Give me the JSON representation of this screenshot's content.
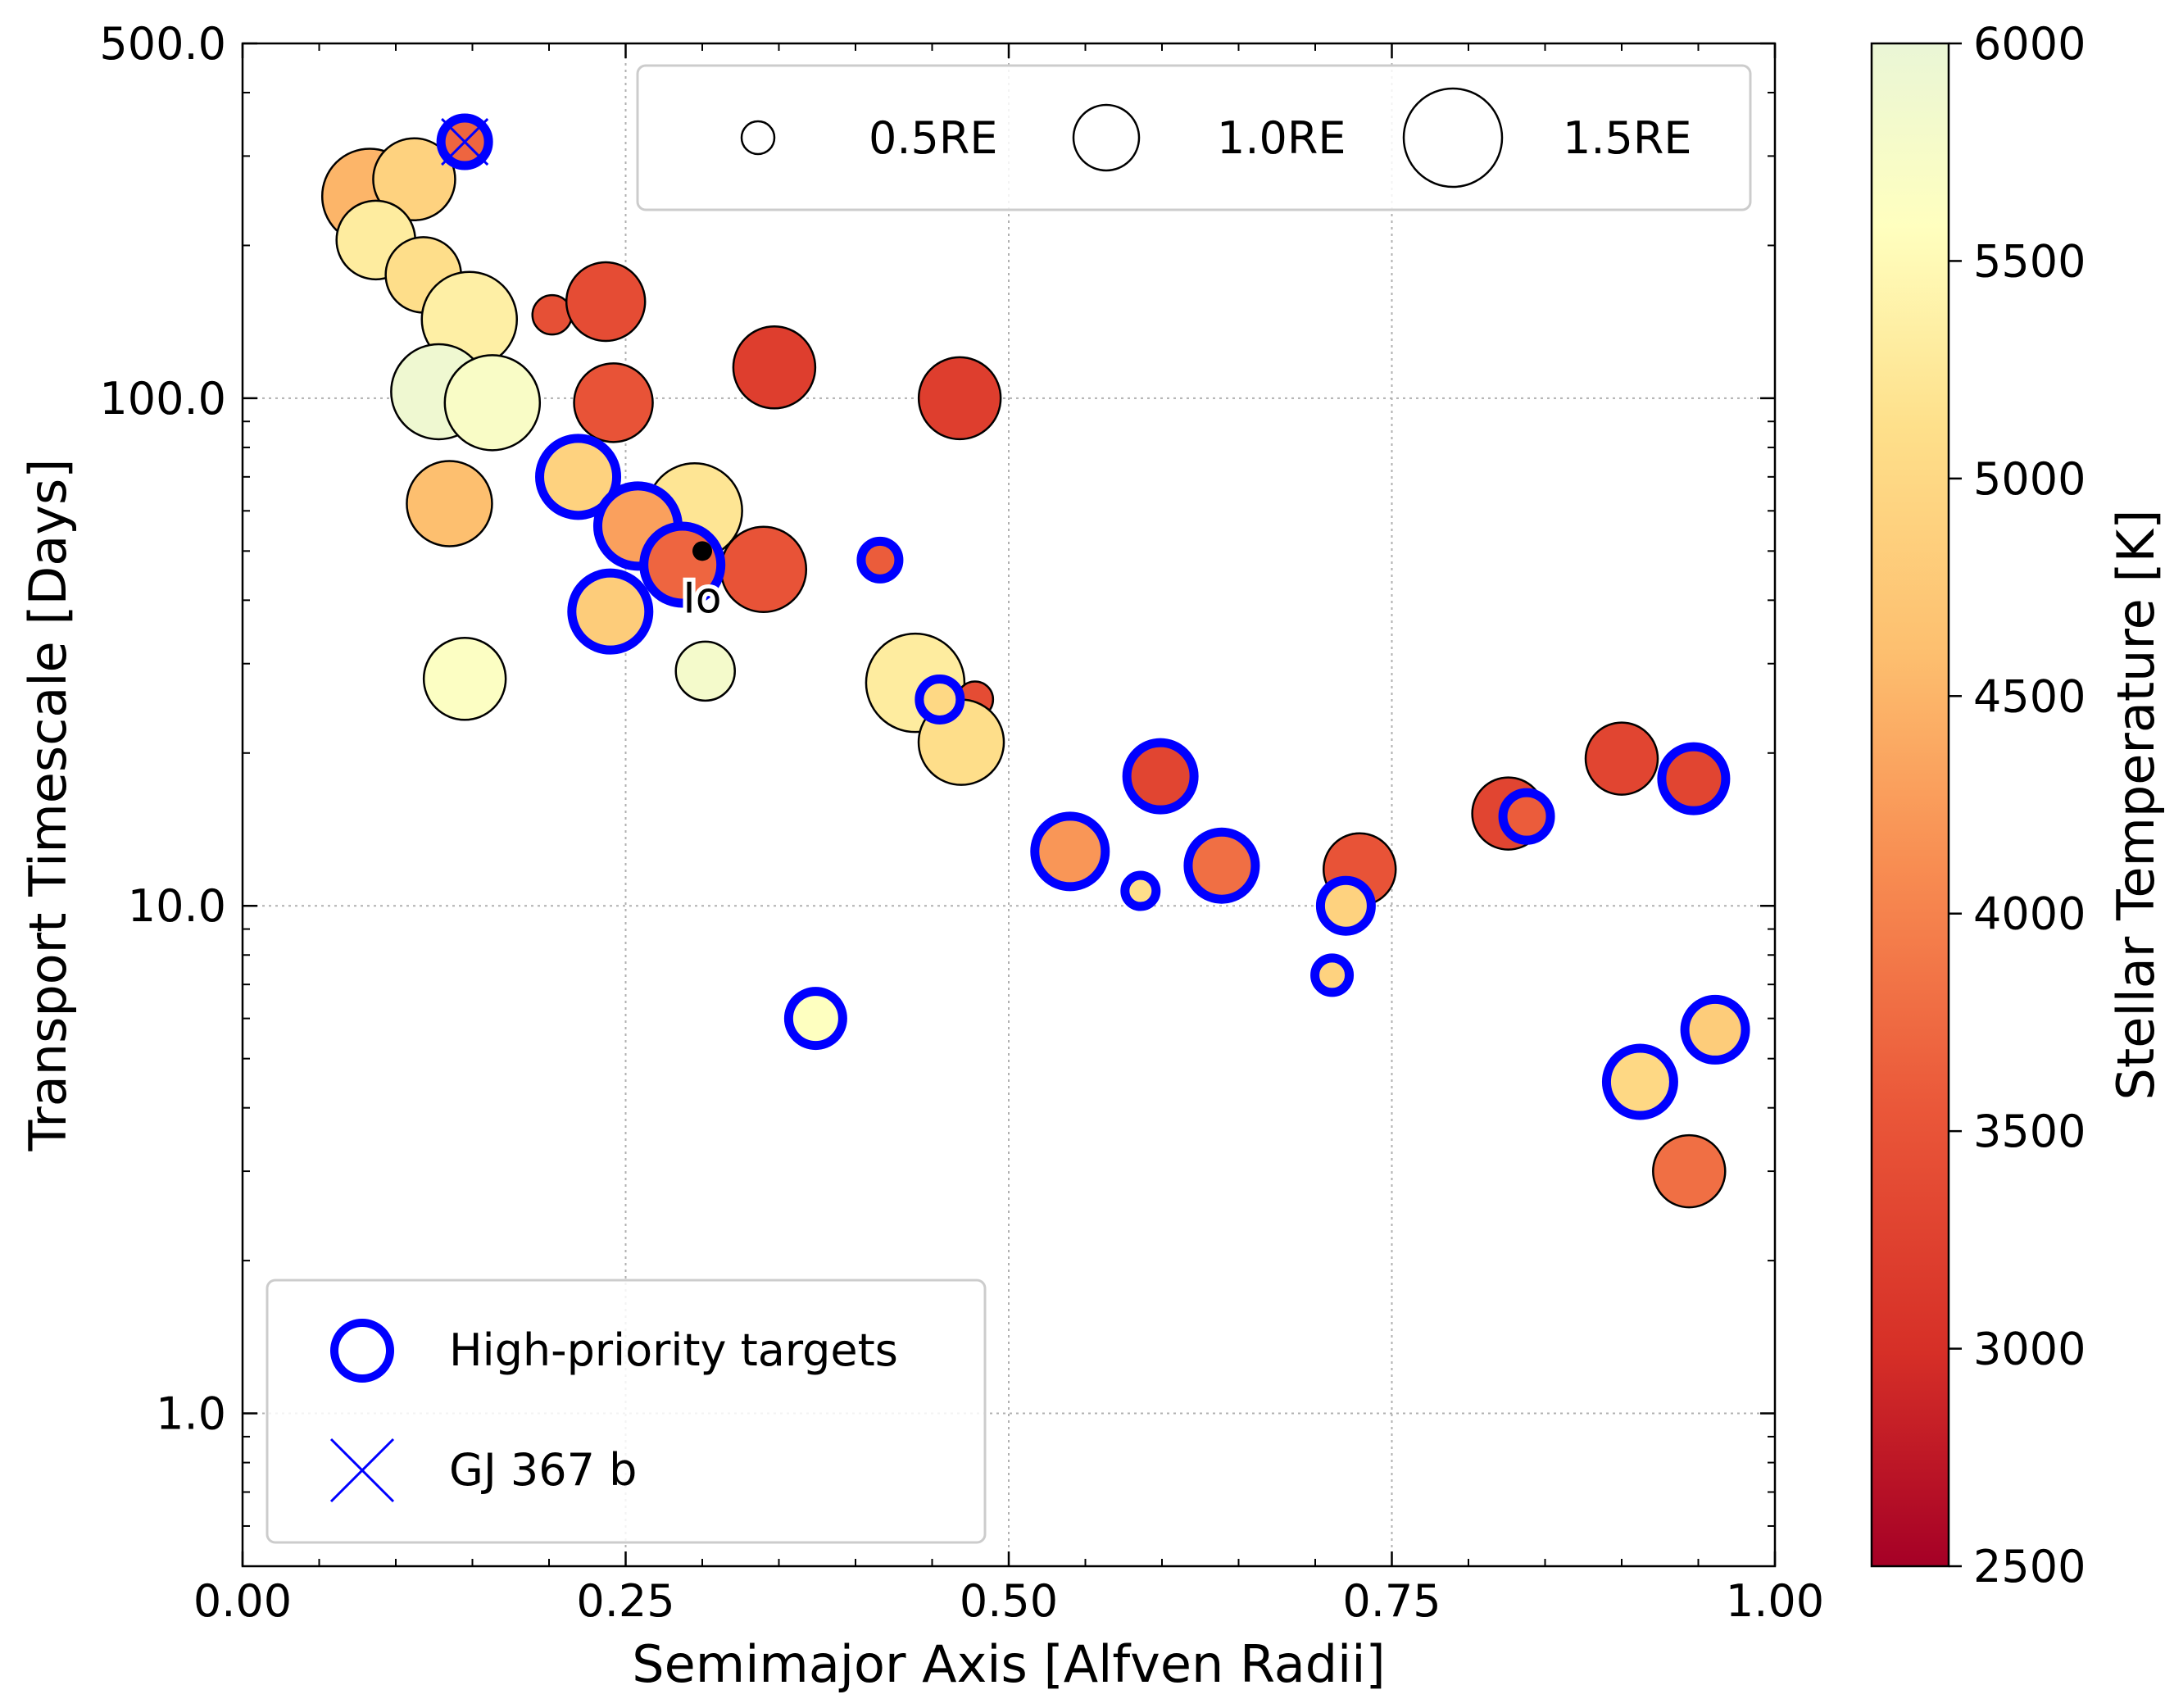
{
  "chart_data": {
    "type": "scatter",
    "xlabel": "Semimajor Axis [Alfven Radii]",
    "ylabel": "Transport Timescale [Days]",
    "xlim": [
      0.0,
      1.0
    ],
    "ylim": [
      0.5,
      500.0
    ],
    "yscale": "log",
    "grid": true,
    "x_ticks": [
      "0.00",
      "0.25",
      "0.50",
      "0.75",
      "1.00"
    ],
    "y_ticks": [
      "1.0",
      "10.0",
      "100.0",
      "500.0"
    ],
    "colorbar": {
      "label": "Stellar Temperature [K]",
      "range": [
        2500,
        6000
      ],
      "ticks": [
        "2500",
        "3000",
        "3500",
        "4000",
        "4500",
        "5000",
        "5500",
        "6000"
      ],
      "colormap": "YlOrRd_r"
    },
    "size_legend": {
      "placement": "top-right",
      "entries": [
        {
          "label": "0.5RE",
          "radius_re": 0.5
        },
        {
          "label": "1.0RE",
          "radius_re": 1.0
        },
        {
          "label": "1.5RE",
          "radius_re": 1.5
        }
      ]
    },
    "marker_legend": {
      "placement": "bottom-left",
      "entries": [
        {
          "label": "High-priority targets",
          "marker": "blue-ring"
        },
        {
          "label": "GJ 367 b",
          "marker": "blue-x"
        }
      ]
    },
    "annotation": {
      "text": "Io",
      "x": 0.3,
      "y": 50
    },
    "points": [
      {
        "x": 0.083,
        "y": 250,
        "r": 1.45,
        "t": 4500,
        "hp": false
      },
      {
        "x": 0.112,
        "y": 270,
        "r": 1.25,
        "t": 4900,
        "hp": false
      },
      {
        "x": 0.087,
        "y": 205,
        "r": 1.2,
        "t": 5300,
        "hp": false
      },
      {
        "x": 0.118,
        "y": 175,
        "r": 1.15,
        "t": 5100,
        "hp": false
      },
      {
        "x": 0.148,
        "y": 143,
        "r": 1.45,
        "t": 5350,
        "hp": false
      },
      {
        "x": 0.128,
        "y": 103,
        "r": 1.45,
        "t": 5900,
        "hp": false
      },
      {
        "x": 0.163,
        "y": 98,
        "r": 1.45,
        "t": 5700,
        "hp": false
      },
      {
        "x": 0.135,
        "y": 62,
        "r": 1.3,
        "t": 4600,
        "hp": false
      },
      {
        "x": 0.145,
        "y": 28,
        "r": 1.25,
        "t": 5650,
        "hp": false
      },
      {
        "x": 0.202,
        "y": 146,
        "r": 0.6,
        "t": 3450,
        "hp": false
      },
      {
        "x": 0.237,
        "y": 155,
        "r": 1.2,
        "t": 3400,
        "hp": false
      },
      {
        "x": 0.242,
        "y": 98,
        "r": 1.2,
        "t": 3500,
        "hp": false
      },
      {
        "x": 0.295,
        "y": 60,
        "r": 1.45,
        "t": 5200,
        "hp": false
      },
      {
        "x": 0.34,
        "y": 46,
        "r": 1.3,
        "t": 3500,
        "hp": false
      },
      {
        "x": 0.347,
        "y": 115,
        "r": 1.25,
        "t": 3200,
        "hp": false
      },
      {
        "x": 0.468,
        "y": 100,
        "r": 1.25,
        "t": 3200,
        "hp": false
      },
      {
        "x": 0.302,
        "y": 29,
        "r": 0.9,
        "t": 5800,
        "hp": false
      },
      {
        "x": 0.439,
        "y": 27.5,
        "r": 1.5,
        "t": 5300,
        "hp": false
      },
      {
        "x": 0.478,
        "y": 25.5,
        "r": 0.55,
        "t": 3400,
        "hp": false
      },
      {
        "x": 0.469,
        "y": 21,
        "r": 1.3,
        "t": 5100,
        "hp": false
      },
      {
        "x": 0.826,
        "y": 15.2,
        "r": 1.1,
        "t": 3300,
        "hp": false
      },
      {
        "x": 0.9,
        "y": 19.5,
        "r": 1.1,
        "t": 3300,
        "hp": false
      },
      {
        "x": 0.729,
        "y": 11.8,
        "r": 1.1,
        "t": 3500,
        "hp": false
      },
      {
        "x": 0.944,
        "y": 3.0,
        "r": 1.1,
        "t": 3800,
        "hp": false
      },
      {
        "x": 0.145,
        "y": 320,
        "r": 0.65,
        "t": 3700,
        "hp": true,
        "gj367": true
      },
      {
        "x": 0.219,
        "y": 70,
        "r": 1.1,
        "t": 4900,
        "hp": true
      },
      {
        "x": 0.258,
        "y": 56,
        "r": 1.15,
        "t": 4300,
        "hp": true
      },
      {
        "x": 0.287,
        "y": 47,
        "r": 1.1,
        "t": 3700,
        "hp": true
      },
      {
        "x": 0.24,
        "y": 38,
        "r": 1.1,
        "t": 4800,
        "hp": true
      },
      {
        "x": 0.416,
        "y": 48,
        "r": 0.5,
        "t": 3600,
        "hp": true
      },
      {
        "x": 0.455,
        "y": 25.5,
        "r": 0.55,
        "t": 5000,
        "hp": true
      },
      {
        "x": 0.374,
        "y": 6.0,
        "r": 0.75,
        "t": 5600,
        "hp": true
      },
      {
        "x": 0.54,
        "y": 12.8,
        "r": 1.0,
        "t": 4200,
        "hp": true
      },
      {
        "x": 0.586,
        "y": 10.7,
        "r": 0.4,
        "t": 5100,
        "hp": true
      },
      {
        "x": 0.599,
        "y": 18.0,
        "r": 0.95,
        "t": 3300,
        "hp": true
      },
      {
        "x": 0.639,
        "y": 12.0,
        "r": 0.95,
        "t": 3800,
        "hp": true
      },
      {
        "x": 0.711,
        "y": 7.3,
        "r": 0.45,
        "t": 4900,
        "hp": true
      },
      {
        "x": 0.72,
        "y": 10.0,
        "r": 0.7,
        "t": 4900,
        "hp": true
      },
      {
        "x": 0.838,
        "y": 15.0,
        "r": 0.65,
        "t": 3600,
        "hp": true
      },
      {
        "x": 0.947,
        "y": 17.8,
        "r": 0.9,
        "t": 3300,
        "hp": true
      },
      {
        "x": 0.912,
        "y": 4.5,
        "r": 0.95,
        "t": 5000,
        "hp": true
      },
      {
        "x": 0.961,
        "y": 5.7,
        "r": 0.85,
        "t": 4800,
        "hp": true
      }
    ]
  }
}
